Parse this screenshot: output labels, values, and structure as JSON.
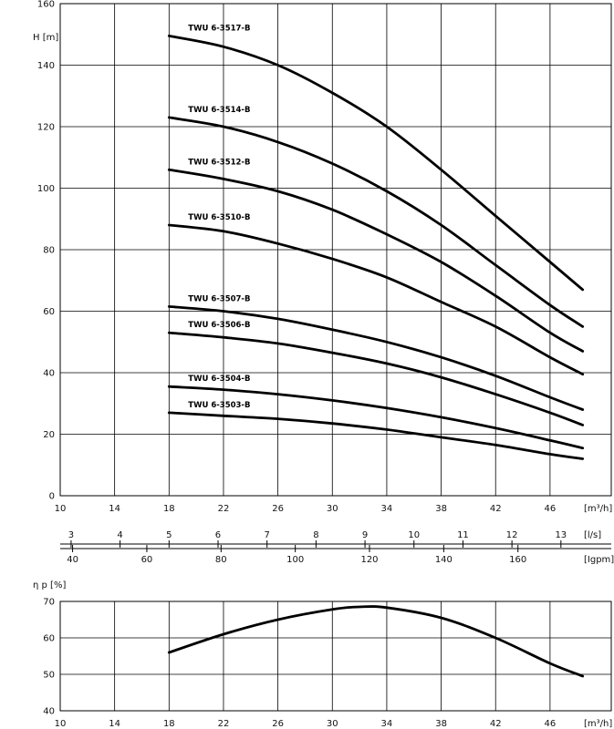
{
  "chart_data": [
    {
      "type": "line",
      "ylabel": "H [m]",
      "xlabel": "[m³/h]",
      "x_ticks": [
        10,
        14,
        18,
        22,
        26,
        30,
        34,
        38,
        42,
        46
      ],
      "y_ticks": [
        0,
        20,
        40,
        60,
        80,
        100,
        120,
        140,
        160
      ],
      "xlim": [
        10,
        50.5
      ],
      "ylim": [
        0,
        160
      ],
      "grid": true,
      "series": [
        {
          "name": "TWU 6-3517-B",
          "x": [
            18,
            22,
            26,
            30,
            34,
            38,
            42,
            46,
            48.4
          ],
          "y": [
            149.5,
            146,
            140,
            131,
            120,
            106,
            91,
            76,
            67
          ]
        },
        {
          "name": "TWU 6-3514-B",
          "x": [
            18,
            22,
            26,
            30,
            34,
            38,
            42,
            46,
            48.4
          ],
          "y": [
            123,
            120,
            115,
            108,
            99,
            88,
            75,
            62,
            55
          ]
        },
        {
          "name": "TWU 6-3512-B",
          "x": [
            18,
            22,
            26,
            30,
            34,
            38,
            42,
            46,
            48.4
          ],
          "y": [
            106,
            103,
            99,
            93,
            85,
            76,
            65,
            53,
            47
          ]
        },
        {
          "name": "TWU 6-3510-B",
          "x": [
            18,
            22,
            26,
            30,
            34,
            38,
            42,
            46,
            48.4
          ],
          "y": [
            88,
            86,
            82,
            77,
            71,
            63,
            55,
            45,
            39.5
          ]
        },
        {
          "name": "TWU 6-3507-B",
          "x": [
            18,
            22,
            26,
            30,
            34,
            38,
            42,
            46,
            48.4
          ],
          "y": [
            61.5,
            60,
            57.5,
            54,
            50,
            45,
            39,
            32,
            28
          ]
        },
        {
          "name": "TWU 6-3506-B",
          "x": [
            18,
            22,
            26,
            30,
            34,
            38,
            42,
            46,
            48.4
          ],
          "y": [
            53,
            51.5,
            49.5,
            46.5,
            43,
            38.5,
            33,
            27,
            23
          ]
        },
        {
          "name": "TWU 6-3504-B",
          "x": [
            18,
            22,
            26,
            30,
            34,
            38,
            42,
            46,
            48.4
          ],
          "y": [
            35.5,
            34.5,
            33,
            31,
            28.5,
            25.5,
            22,
            18,
            15.5
          ]
        },
        {
          "name": "TWU 6-3503-B",
          "x": [
            18,
            22,
            26,
            30,
            34,
            38,
            42,
            46,
            48.4
          ],
          "y": [
            27,
            26,
            25,
            23.5,
            21.5,
            19,
            16.5,
            13.5,
            12
          ]
        }
      ],
      "secondary_axes": [
        {
          "label": "[l/s]",
          "ticks": [
            3,
            4,
            5,
            6,
            7,
            8,
            9,
            10,
            11,
            12,
            13
          ]
        },
        {
          "label": "[Igpm]",
          "ticks": [
            40,
            60,
            80,
            100,
            120,
            140,
            160
          ]
        }
      ]
    },
    {
      "type": "line",
      "ylabel": "η p [%]",
      "xlabel": "[m³/h]",
      "x_ticks": [
        10,
        14,
        18,
        22,
        26,
        30,
        34,
        38,
        42,
        46
      ],
      "y_ticks": [
        40,
        50,
        60,
        70
      ],
      "xlim": [
        10,
        50.5
      ],
      "ylim": [
        40,
        70
      ],
      "grid": true,
      "series": [
        {
          "x": [
            18,
            22,
            26,
            30,
            32,
            34,
            38,
            42,
            46,
            48.4
          ],
          "y": [
            56,
            61,
            65,
            67.8,
            68.5,
            68.3,
            65.5,
            60,
            53,
            49.5
          ]
        }
      ]
    }
  ]
}
